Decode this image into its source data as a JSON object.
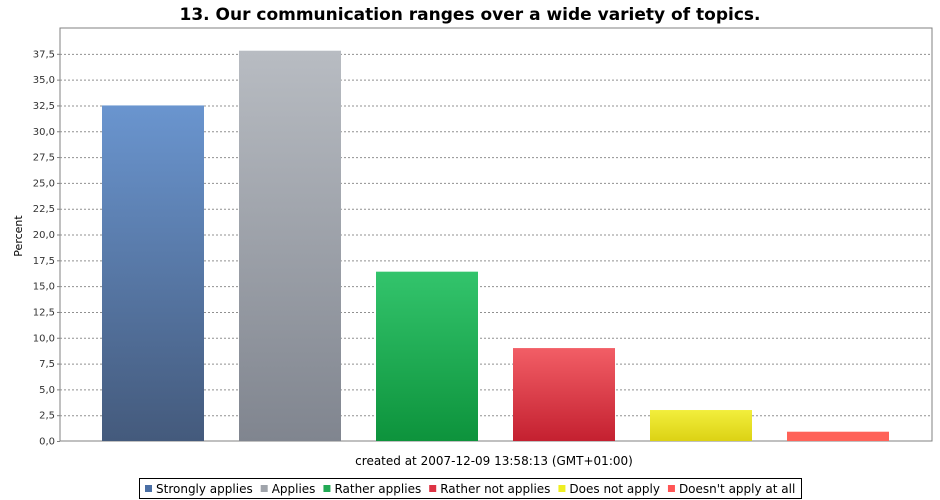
{
  "chart_data": {
    "type": "bar",
    "title": "13. Our communication ranges over a wide variety of topics.",
    "ylabel": "Percent",
    "xlabel": "created at 2007-12-09 13:58:13 (GMT+01:00)",
    "ylim": [
      0,
      40
    ],
    "ytick_step": 2.5,
    "grid": true,
    "legend_position": "bottom",
    "categories": [
      "Strongly applies",
      "Applies",
      "Rather applies",
      "Rather not applies",
      "Does not apply",
      "Doesn't apply at all"
    ],
    "values": [
      32.5,
      37.8,
      16.4,
      9.0,
      3.0,
      0.9
    ],
    "colors": [
      [
        "#6a95cf",
        "#445a7c"
      ],
      [
        "#b8bcc2",
        "#80858f"
      ],
      [
        "#33c46c",
        "#0d933c"
      ],
      [
        "#f25e66",
        "#c42030"
      ],
      [
        "#f2ee3c",
        "#dcd214"
      ],
      [
        "#ff6258",
        "#ff6258"
      ]
    ],
    "legend_colors": [
      "#4a6fa5",
      "#a0a4ab",
      "#22aa55",
      "#dd3344",
      "#eeee22",
      "#ff5555"
    ]
  }
}
